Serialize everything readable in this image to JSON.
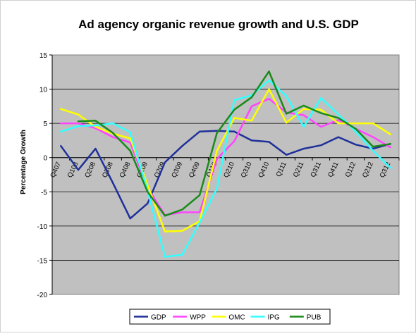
{
  "chart_data": {
    "type": "line",
    "title": "Ad agency organic revenue growth and U.S. GDP",
    "xlabel": "",
    "ylabel": "Percentage Growth",
    "ylim": [
      -20,
      15
    ],
    "yticks": [
      15,
      10,
      5,
      0,
      -5,
      -10,
      -15,
      -20
    ],
    "grid": true,
    "plot_background": "#c0c0c0",
    "legend_position": "bottom",
    "categories": [
      "Q407",
      "Q108",
      "Q208",
      "Q308",
      "Q408",
      "Q109",
      "Q209",
      "Q309",
      "Q409",
      "Q110",
      "Q210",
      "Q310",
      "Q410",
      "Q111",
      "Q211",
      "Q311",
      "Q411",
      "Q112",
      "Q212",
      "Q312"
    ],
    "tick_labels": [
      "Q407",
      "Q108",
      "Q208",
      "Q308",
      "Q408",
      "Q109",
      "Q209",
      "Q309",
      "Q409",
      "Q110",
      "Q210",
      "Q310",
      "Q410",
      "Q111",
      "Q211",
      "Q311",
      "Q411",
      "Q112",
      "Q212",
      "Q312"
    ],
    "series": [
      {
        "name": "GDP",
        "color": "#1f3099",
        "values": [
          1.7,
          -1.8,
          1.3,
          -3.7,
          -8.9,
          -6.7,
          -0.7,
          1.7,
          3.8,
          3.9,
          3.8,
          2.5,
          2.3,
          0.4,
          1.3,
          1.8,
          3.0,
          1.9,
          1.3,
          2.0
        ]
      },
      {
        "name": "WPP",
        "color": "#ff44ff",
        "values": [
          5.0,
          5.0,
          4.3,
          3.0,
          2.2,
          -4.4,
          -8.4,
          -8.0,
          -8.0,
          -0.2,
          2.4,
          7.5,
          8.6,
          6.6,
          6.2,
          4.5,
          5.5,
          4.2,
          3.0,
          1.5
        ]
      },
      {
        "name": "OMC",
        "color": "#ffff00",
        "values": [
          7.1,
          6.3,
          4.5,
          3.5,
          2.8,
          -4.0,
          -10.8,
          -10.7,
          -9.3,
          1.0,
          5.8,
          5.4,
          10.0,
          5.1,
          7.1,
          7.0,
          5.0,
          5.0,
          5.0,
          3.4
        ]
      },
      {
        "name": "IPG",
        "color": "#33ffff",
        "values": [
          3.8,
          4.6,
          4.7,
          5.0,
          3.7,
          -4.8,
          -14.5,
          -14.2,
          -9.5,
          -4.5,
          8.4,
          9.1,
          11.3,
          9.0,
          4.5,
          8.7,
          6.3,
          3.8,
          1.0,
          -1.5
        ]
      },
      {
        "name": "PUB",
        "color": "#1a8a1a",
        "values": [
          null,
          5.3,
          5.4,
          3.6,
          1.0,
          -5.0,
          -8.5,
          -7.6,
          -5.5,
          3.6,
          7.0,
          8.8,
          12.6,
          6.4,
          7.6,
          6.5,
          5.8,
          4.2,
          1.6,
          2.0
        ]
      }
    ]
  }
}
